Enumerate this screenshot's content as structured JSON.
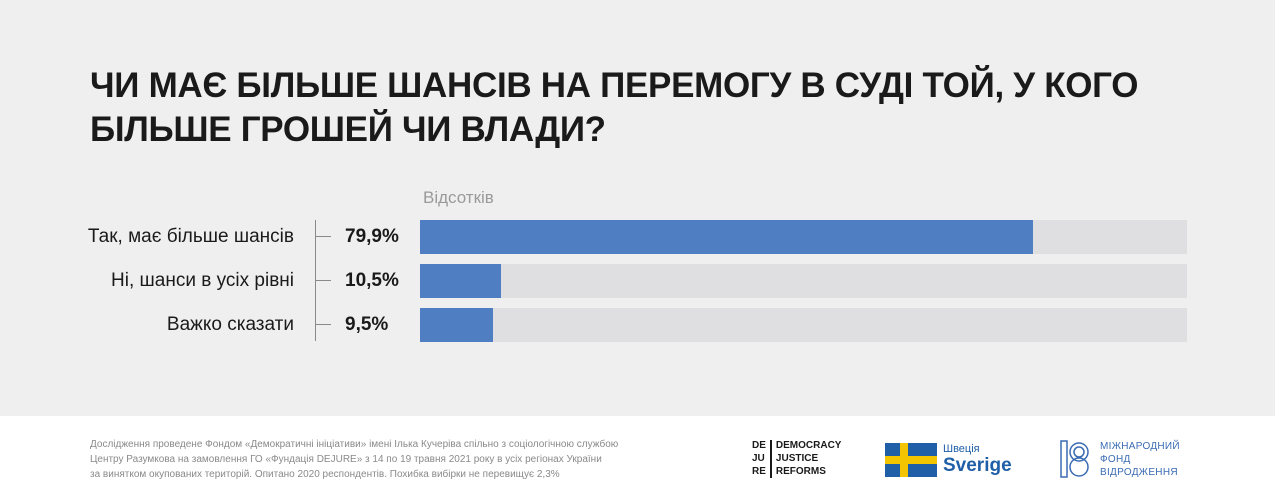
{
  "title": "Чи має більше шансів на перемогу в суді той, у кого більше грошей чи влади?",
  "chart_data": {
    "type": "bar",
    "orientation": "horizontal",
    "unit_label": "Відсотків",
    "categories": [
      "Так, має більше шансів",
      "Ні, шанси в усіх рівні",
      "Важко сказати"
    ],
    "values": [
      79.9,
      10.5,
      9.5
    ],
    "value_labels": [
      "79,9%",
      "10,5%",
      "9,5%"
    ],
    "xlim": [
      0,
      100
    ],
    "colors": {
      "bar": "#4f7ec2",
      "track": "#dfdfe2"
    }
  },
  "footer": {
    "note_lines": [
      "Дослідження проведене Фондом «Демократичні ініціативи» імені Ілька Кучеріва спільно з соціологічною службою",
      "Центру Разумкова на замовлення ГО «Фундація DEJURE» з 14 по 19 травня 2021 року в усіх регіонах України",
      "за винятком окупованих територій. Опитано 2020 респондентів. Похибка вибірки не перевищує 2,3%"
    ]
  },
  "logos": {
    "dejure": {
      "left_lines": [
        "DE",
        "JU",
        "RE"
      ],
      "right_lines": [
        "DEMOCRACY",
        "JUSTICE",
        "REFORMS"
      ]
    },
    "sweden": {
      "line1": "Швеція",
      "line2": "Sverige",
      "flag_colors": {
        "blue": "#1f5fa8",
        "yellow": "#f2c500"
      }
    },
    "irf": {
      "lines": [
        "МІЖНАРОДНИЙ",
        "ФОНД",
        "ВІДРОДЖЕННЯ"
      ],
      "color": "#3a6bb3"
    }
  }
}
